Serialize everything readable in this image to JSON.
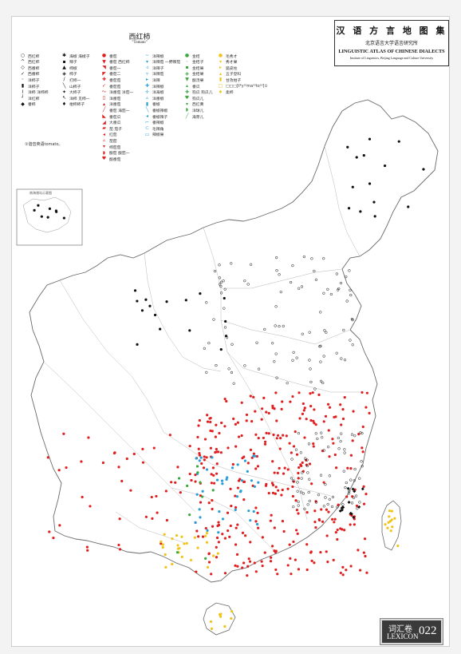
{
  "map": {
    "title": "西红柿",
    "subtitle": "\"Tomato\"",
    "note": "①谐音英语tomato。",
    "inset_label": "南海诸岛示意图"
  },
  "atlas": {
    "title_zh": "汉 语 方 言 地 图 集",
    "institute_zh": "北京语言大学语言研究所",
    "title_en": "LINGUISTIC ATLAS OF CHINESE DIALECTS",
    "institute_en": "Institute of Linguistics, Beijing Language and Culture University"
  },
  "footer": {
    "volume_zh": "词汇卷",
    "volume_en": "LEXICON",
    "page": "022"
  },
  "colors": {
    "red": "#e02020",
    "blue": "#2a9fd6",
    "yellow": "#f0c419",
    "green": "#3aa83a",
    "black": "#111111",
    "border": "#888888"
  },
  "legend": [
    {
      "sym": "○",
      "color": "#111111",
      "label": "西红柿"
    },
    {
      "sym": "^",
      "color": "#111111",
      "label": "西红杮"
    },
    {
      "sym": "◇",
      "color": "#111111",
      "label": "西番柿"
    },
    {
      "sym": "✓",
      "color": "#111111",
      "label": "西番柿"
    },
    {
      "sym": "◦",
      "color": "#111111",
      "label": "洋柿子"
    },
    {
      "sym": "▮",
      "color": "#111111",
      "label": "洋柿子"
    },
    {
      "sym": "⌇",
      "color": "#111111",
      "label": "洋柿 洋柿柿"
    },
    {
      "sym": "┘",
      "color": "#111111",
      "label": "洋红柿"
    },
    {
      "sym": "◆",
      "color": "#111111",
      "label": "番柿"
    },
    {
      "sym": "✱",
      "color": "#111111",
      "label": "海椒 海椒子"
    },
    {
      "sym": "▪",
      "color": "#111111",
      "label": "辣子"
    },
    {
      "sym": "▲",
      "color": "#111111",
      "label": "柿椒"
    },
    {
      "sym": "◈",
      "color": "#111111",
      "label": "柿子"
    },
    {
      "sym": "/",
      "color": "#111111",
      "label": "打柿一"
    },
    {
      "sym": "╲",
      "color": "#111111",
      "label": "山柿子"
    },
    {
      "sym": "✦",
      "color": "#111111",
      "label": "大柿子"
    },
    {
      "sym": "↖",
      "color": "#111111",
      "label": "洋柿 见柿一"
    },
    {
      "sym": "♦",
      "color": "#111111",
      "label": "柑柿柿子"
    },
    {
      "sym": "●",
      "color": "#e02020",
      "label": "番茄"
    },
    {
      "sym": "▼",
      "color": "#e02020",
      "label": "番茄 西红柿"
    },
    {
      "sym": "◥",
      "color": "#e02020",
      "label": "番茄一"
    },
    {
      "sym": "◤",
      "color": "#e02020",
      "label": "番茄二"
    },
    {
      "sym": "✚",
      "color": "#e02020",
      "label": "番茄茄"
    },
    {
      "sym": "✓",
      "color": "#e02020",
      "label": "番茄茄"
    },
    {
      "sym": "〜",
      "color": "#e02020",
      "label": "洋番茄 洋茄一"
    },
    {
      "sym": "▯",
      "color": "#e02020",
      "label": "洋番茄"
    },
    {
      "sym": "▴",
      "color": "#e02020",
      "label": "洋番茄"
    },
    {
      "sym": "╱",
      "color": "#e02020",
      "label": "番茄 海茄一"
    },
    {
      "sym": "◣",
      "color": "#e02020",
      "label": "番茄瓜"
    },
    {
      "sym": "◢",
      "color": "#e02020",
      "label": "大番瓜"
    },
    {
      "sym": "▰",
      "color": "#e02020",
      "label": "茄 茄子"
    },
    {
      "sym": "◂",
      "color": "#e02020",
      "label": "红茄"
    },
    {
      "sym": "▵",
      "color": "#e02020",
      "label": "茄茄"
    },
    {
      "sym": "▾",
      "color": "#e02020",
      "label": "柿茄茄"
    },
    {
      "sym": "◗",
      "color": "#e02020",
      "label": "酸茄 酸茄一"
    },
    {
      "sym": "♥",
      "color": "#e02020",
      "label": "酸番茄"
    },
    {
      "sym": "~",
      "color": "#2a9fd6",
      "label": "洋辣椒"
    },
    {
      "sym": "▾",
      "color": "#2a9fd6",
      "label": "洋辣茄 一野辣茄"
    },
    {
      "sym": "◃",
      "color": "#2a9fd6",
      "label": "洋辣子"
    },
    {
      "sym": "▿",
      "color": "#2a9fd6",
      "label": "洋辣茄"
    },
    {
      "sym": "▸",
      "color": "#2a9fd6",
      "label": "洋辣"
    },
    {
      "sym": "✚",
      "color": "#2a9fd6",
      "label": "洋辣椒"
    },
    {
      "sym": "✛",
      "color": "#2a9fd6",
      "label": "洋海椒"
    },
    {
      "sym": "▵",
      "color": "#2a9fd6",
      "label": "洋番椒"
    },
    {
      "sym": "▮",
      "color": "#2a9fd6",
      "label": "番椒"
    },
    {
      "sym": "╲",
      "color": "#2a9fd6",
      "label": "番椒辣椒"
    },
    {
      "sym": "◂",
      "color": "#2a9fd6",
      "label": "番椒辣子"
    },
    {
      "sym": "⌐",
      "color": "#2a9fd6",
      "label": "番辣椒"
    },
    {
      "sym": "⊂",
      "color": "#2a9fd6",
      "label": "毛辣角"
    },
    {
      "sym": "▭",
      "color": "#2a9fd6",
      "label": "辣椒果"
    },
    {
      "sym": "●",
      "color": "#3aa83a",
      "label": "金桔"
    },
    {
      "sym": "◦",
      "color": "#3aa83a",
      "label": "金桔子"
    },
    {
      "sym": "▪",
      "color": "#3aa83a",
      "label": "金桔果"
    },
    {
      "sym": "◈",
      "color": "#3aa83a",
      "label": "金桔果"
    },
    {
      "sym": "▼",
      "color": "#3aa83a",
      "label": "酸汤果"
    },
    {
      "sym": "▴",
      "color": "#3aa83a",
      "label": "番瓜"
    },
    {
      "sym": "✚",
      "color": "#3aa83a",
      "label": "狗瓜 狗瓜儿"
    },
    {
      "sym": "♥",
      "color": "#3aa83a",
      "label": "狗瓜儿"
    },
    {
      "sym": "▾",
      "color": "#3aa83a",
      "label": "西红黄"
    },
    {
      "sym": "◗",
      "color": "#3aa83a",
      "label": "洋球儿"
    },
    {
      "sym": "╱",
      "color": "#3aa83a",
      "label": "海芽儿"
    },
    {
      "sym": "●",
      "color": "#f0c419",
      "label": "毛秀才"
    },
    {
      "sym": "▾",
      "color": "#f0c419",
      "label": "秀才果"
    },
    {
      "sym": "▸",
      "color": "#f0c419",
      "label": "狐皮柱"
    },
    {
      "sym": "▴",
      "color": "#f0c419",
      "label": "五子登科"
    },
    {
      "sym": "▮",
      "color": "#f0c419",
      "label": "甘孜柑子"
    },
    {
      "sym": "□",
      "color": "#f0c419",
      "label": "□□□[t*y⁵⁵ma⁵⁵to⁵³]①"
    },
    {
      "sym": "♦",
      "color": "#f0c419",
      "label": "柔柿"
    }
  ]
}
